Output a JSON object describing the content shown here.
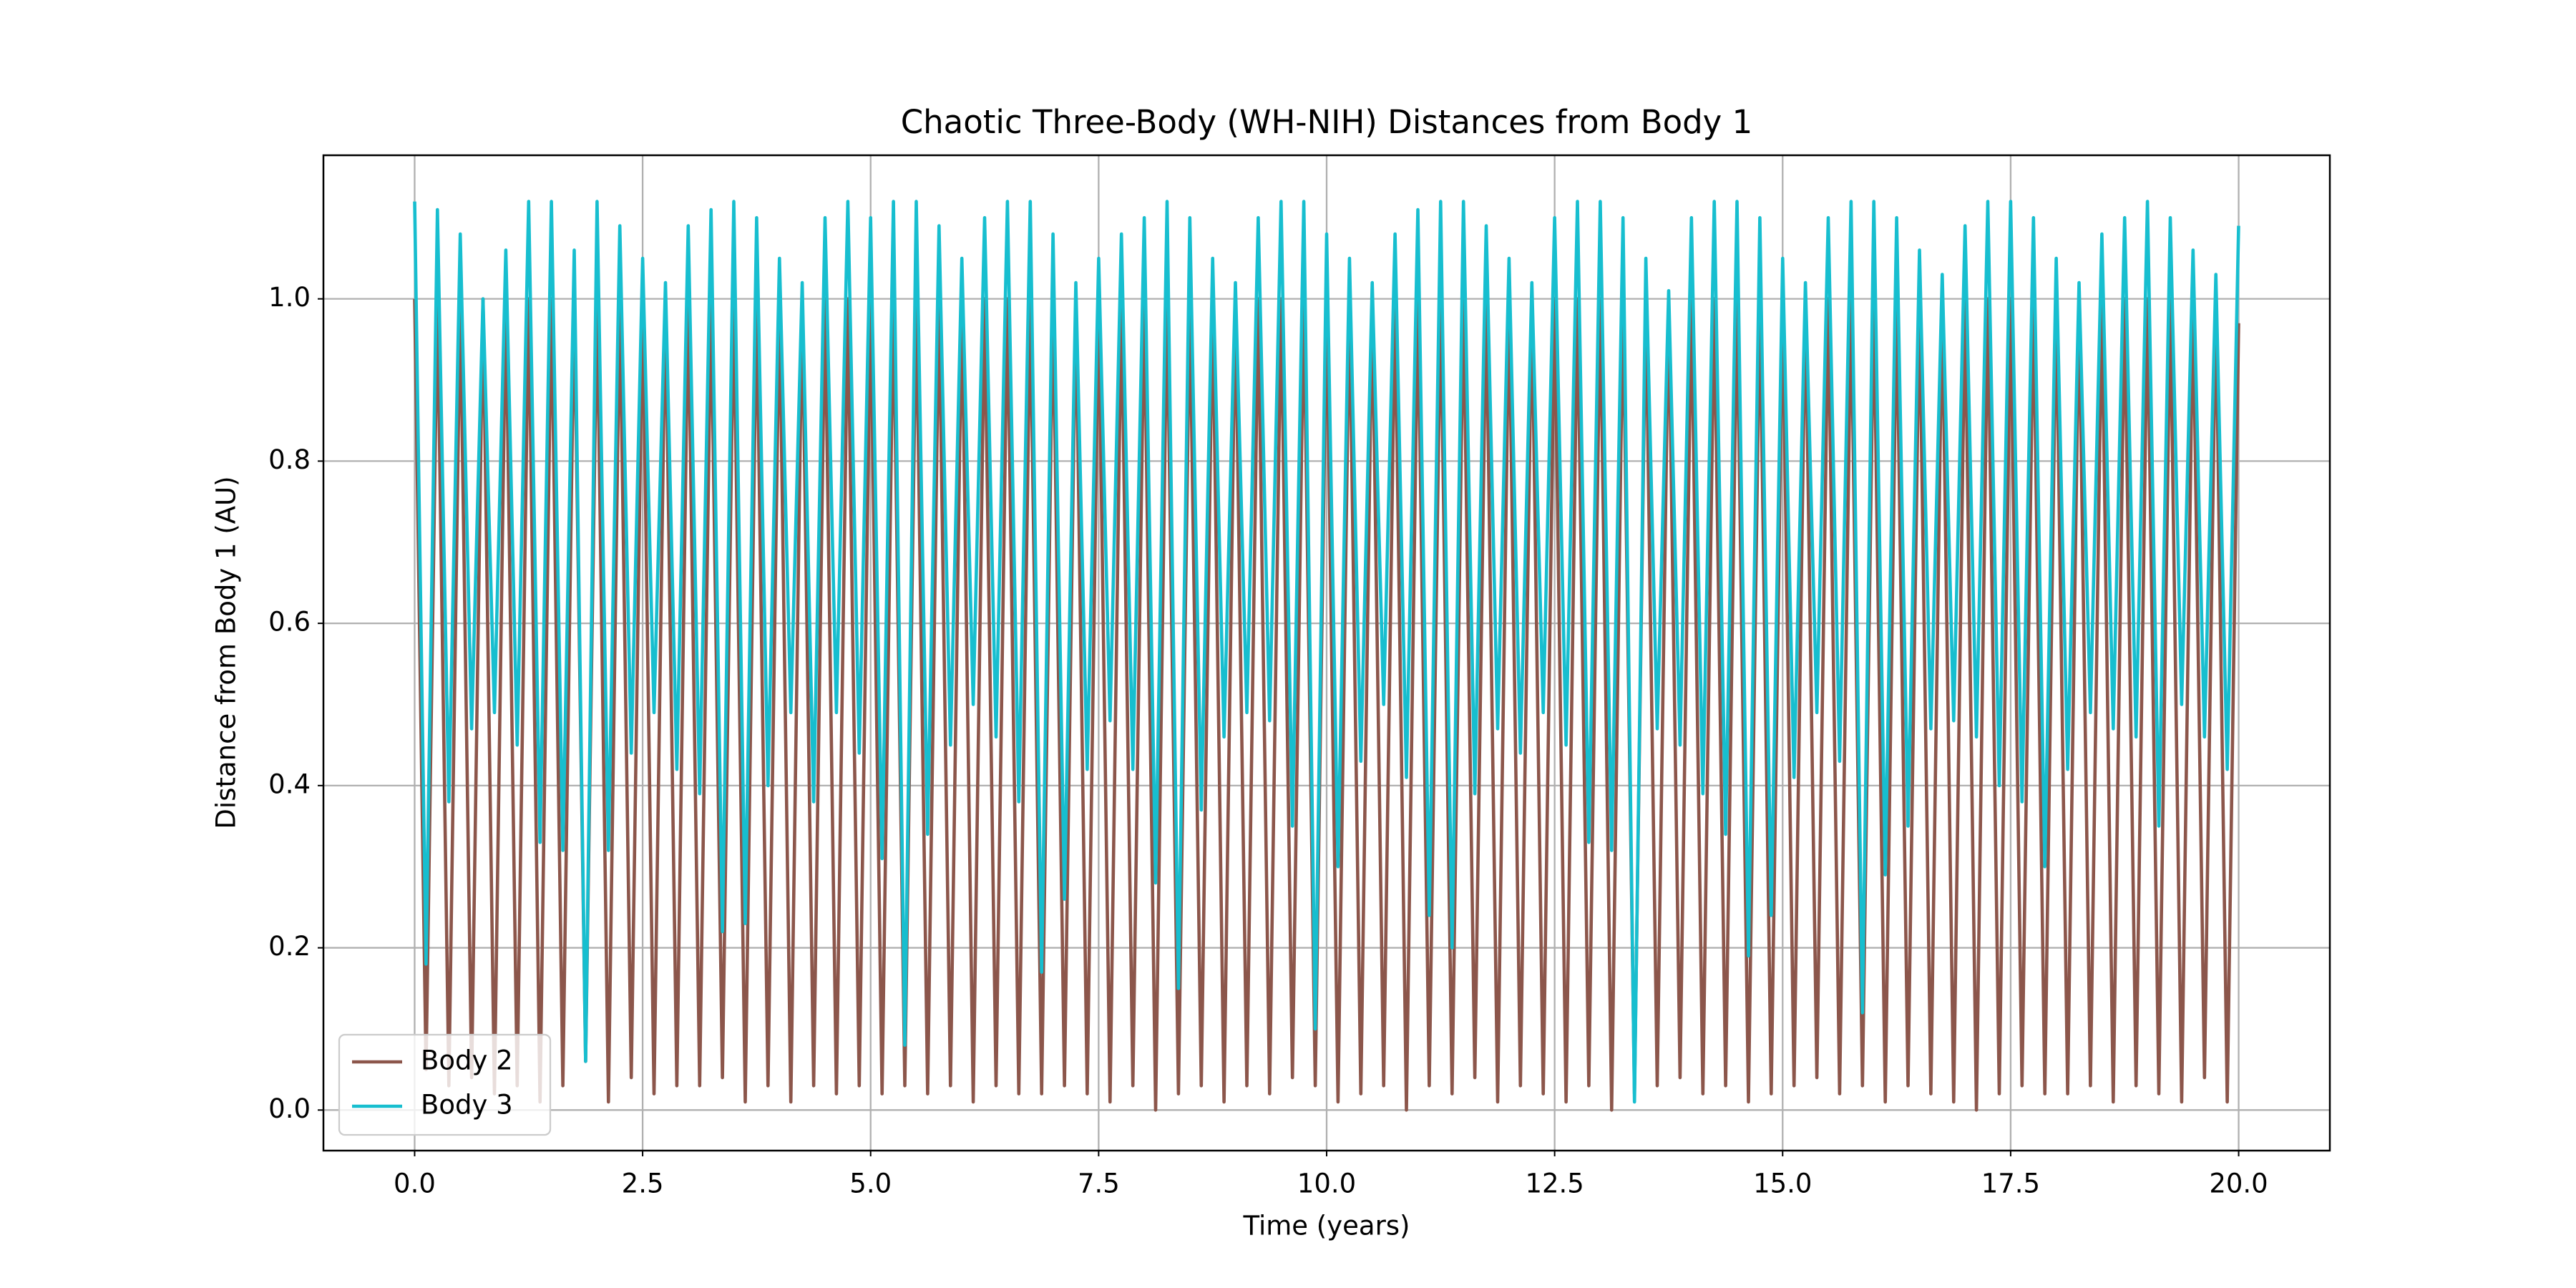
{
  "chart_data": {
    "type": "line",
    "title": "Chaotic Three-Body (WH-NIH) Distances from Body 1",
    "xlabel": "Time (years)",
    "ylabel": "Distance from Body 1 (AU)",
    "x": [
      0,
      0.125,
      0.25,
      0.375,
      0.5,
      0.625,
      0.75,
      0.875,
      1,
      1.125,
      1.25,
      1.375,
      1.5,
      1.625,
      1.75,
      1.875,
      2,
      2.125,
      2.25,
      2.375,
      2.5,
      2.625,
      2.75,
      2.875,
      3,
      3.125,
      3.25,
      3.375,
      3.5,
      3.625,
      3.75,
      3.875,
      4,
      4.125,
      4.25,
      4.375,
      4.5,
      4.625,
      4.75,
      4.875,
      5,
      5.125,
      5.25,
      5.375,
      5.5,
      5.625,
      5.75,
      5.875,
      6,
      6.125,
      6.25,
      6.375,
      6.5,
      6.625,
      6.75,
      6.875,
      7,
      7.125,
      7.25,
      7.375,
      7.5,
      7.625,
      7.75,
      7.875,
      8,
      8.125,
      8.25,
      8.375,
      8.5,
      8.625,
      8.75,
      8.875,
      9,
      9.125,
      9.25,
      9.375,
      9.5,
      9.625,
      9.75,
      9.875,
      10,
      10.125,
      10.25,
      10.375,
      10.5,
      10.625,
      10.75,
      10.875,
      11,
      11.125,
      11.25,
      11.375,
      11.5,
      11.625,
      11.75,
      11.875,
      12,
      12.125,
      12.25,
      12.375,
      12.5,
      12.625,
      12.75,
      12.875,
      13,
      13.125,
      13.25,
      13.375,
      13.5,
      13.625,
      13.75,
      13.875,
      14,
      14.125,
      14.25,
      14.375,
      14.5,
      14.625,
      14.75,
      14.875,
      15,
      15.125,
      15.25,
      15.375,
      15.5,
      15.625,
      15.75,
      15.875,
      16,
      16.125,
      16.25,
      16.375,
      16.5,
      16.625,
      16.75,
      16.875,
      17,
      17.125,
      17.25,
      17.375,
      17.5,
      17.625,
      17.75,
      17.875,
      18,
      18.125,
      18.25,
      18.375,
      18.5,
      18.625,
      18.75,
      18.875,
      19,
      19.125,
      19.25,
      19.375,
      19.5,
      19.625,
      19.75,
      19.875,
      20
    ],
    "series": [
      {
        "name": "Body 2",
        "color": "#8c564b",
        "values": [
          1,
          0.05,
          1,
          0.03,
          1,
          0.04,
          1,
          0.02,
          1,
          0.03,
          1,
          0.01,
          1,
          0.03,
          1,
          0.06,
          1,
          0.01,
          1,
          0.04,
          1,
          0.02,
          1,
          0.03,
          1,
          0.03,
          1,
          0.04,
          1,
          0.01,
          1,
          0.03,
          1,
          0.01,
          1,
          0.03,
          1,
          0.02,
          1,
          0.03,
          1,
          0.02,
          1,
          0.03,
          1,
          0.02,
          1,
          0.03,
          1,
          0.01,
          1,
          0.03,
          1,
          0.02,
          1,
          0.02,
          1,
          0.03,
          1,
          0.02,
          1,
          0.01,
          1,
          0.03,
          1,
          0,
          1,
          0.02,
          1,
          0.03,
          1,
          0.01,
          1,
          0.03,
          1,
          0.02,
          1,
          0.04,
          1,
          0.03,
          1,
          0.01,
          1,
          0.02,
          1,
          0.03,
          1,
          0,
          1,
          0.03,
          1,
          0.02,
          1,
          0.04,
          1,
          0.01,
          1,
          0.03,
          1,
          0.02,
          1,
          0.01,
          1,
          0.03,
          1,
          0,
          1,
          0.02,
          1,
          0.03,
          1,
          0.04,
          1,
          0.02,
          1,
          0.03,
          1,
          0.01,
          1,
          0.02,
          1,
          0.03,
          1,
          0.04,
          1,
          0.02,
          1,
          0.03,
          1,
          0.01,
          1,
          0.03,
          1,
          0.02,
          1,
          0.01,
          1,
          0,
          1,
          0.02,
          1,
          0.03,
          1,
          0.02,
          1,
          0.02,
          1,
          0.03,
          1,
          0.01,
          1,
          0.03,
          1,
          0.02,
          1,
          0.01,
          1,
          0.04,
          1,
          0.01,
          0.97
        ]
      },
      {
        "name": "Body 3",
        "color": "#17becf",
        "values": [
          1.12,
          0.18,
          1.11,
          0.38,
          1.08,
          0.47,
          1.0,
          0.49,
          1.06,
          0.45,
          1.12,
          0.33,
          1.12,
          0.32,
          1.06,
          0.06,
          1.12,
          0.32,
          1.09,
          0.44,
          1.05,
          0.49,
          1.02,
          0.42,
          1.09,
          0.39,
          1.11,
          0.22,
          1.12,
          0.23,
          1.1,
          0.4,
          1.05,
          0.49,
          1.02,
          0.38,
          1.1,
          0.49,
          1.12,
          0.44,
          1.1,
          0.31,
          1.12,
          0.08,
          1.12,
          0.34,
          1.09,
          0.45,
          1.05,
          0.5,
          1.1,
          0.46,
          1.12,
          0.38,
          1.12,
          0.17,
          1.08,
          0.26,
          1.02,
          0.42,
          1.05,
          0.48,
          1.08,
          0.42,
          1.1,
          0.28,
          1.12,
          0.15,
          1.1,
          0.37,
          1.05,
          0.46,
          1.02,
          0.49,
          1.1,
          0.48,
          1.12,
          0.35,
          1.12,
          0.1,
          1.08,
          0.3,
          1.05,
          0.43,
          1.02,
          0.5,
          1.08,
          0.41,
          1.11,
          0.24,
          1.12,
          0.2,
          1.12,
          0.39,
          1.09,
          0.47,
          1.05,
          0.44,
          1.02,
          0.49,
          1.1,
          0.45,
          1.12,
          0.33,
          1.12,
          0.32,
          1.1,
          0.01,
          1.05,
          0.47,
          1.01,
          0.45,
          1.1,
          0.39,
          1.12,
          0.34,
          1.12,
          0.19,
          1.1,
          0.24,
          1.05,
          0.41,
          1.02,
          0.49,
          1.1,
          0.43,
          1.12,
          0.12,
          1.12,
          0.29,
          1.1,
          0.35,
          1.06,
          0.47,
          1.03,
          0.48,
          1.09,
          0.46,
          1.12,
          0.4,
          1.12,
          0.38,
          1.1,
          0.3,
          1.05,
          0.42,
          1.02,
          0.49,
          1.08,
          0.47,
          1.1,
          0.46,
          1.12,
          0.35,
          1.1,
          0.5,
          1.06,
          0.46,
          1.03,
          0.42,
          1.09
        ]
      }
    ],
    "xlim": [
      -1,
      21
    ],
    "ylim": [
      -0.05,
      1.177
    ],
    "xticks": [
      {
        "value": 0,
        "label": "0.0"
      },
      2.5,
      {
        "value": 5,
        "label": "5.0"
      },
      7.5,
      {
        "value": 10,
        "label": "10.0"
      },
      12.5,
      {
        "value": 15,
        "label": "15.0"
      },
      17.5,
      {
        "value": 20,
        "label": "20.0"
      }
    ],
    "yticks": [
      {
        "value": 0,
        "label": "0.0"
      },
      0.2,
      0.4,
      0.6,
      0.8,
      {
        "value": 1,
        "label": "1.0"
      }
    ],
    "grid": true,
    "legend": "lower left"
  }
}
